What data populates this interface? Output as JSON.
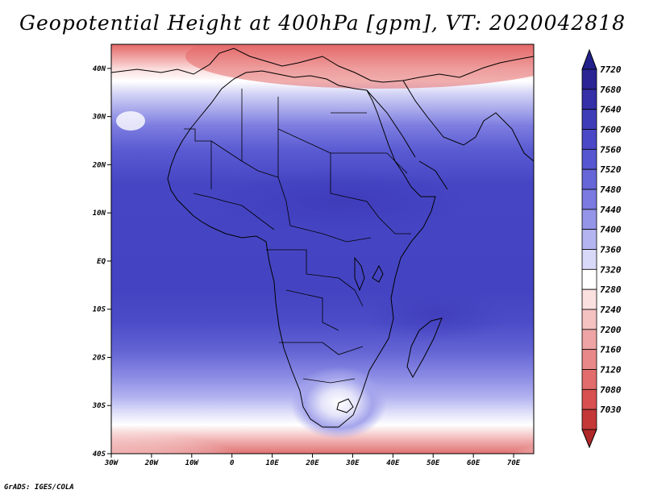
{
  "title": "Geopotential Height at 400hPa [gpm], VT: 2020042818",
  "footer": "GrADS: IGES/COLA",
  "map": {
    "lon_range": [
      -30,
      75
    ],
    "lat_range": [
      -40,
      45
    ],
    "lat_ticks": [
      {
        "value": 40,
        "label": "40N"
      },
      {
        "value": 30,
        "label": "30N"
      },
      {
        "value": 20,
        "label": "20N"
      },
      {
        "value": 10,
        "label": "10N"
      },
      {
        "value": 0,
        "label": "EQ"
      },
      {
        "value": -10,
        "label": "10S"
      },
      {
        "value": -20,
        "label": "20S"
      },
      {
        "value": -30,
        "label": "30S"
      },
      {
        "value": -40,
        "label": "40S"
      }
    ],
    "lon_ticks": [
      {
        "value": -30,
        "label": "30W"
      },
      {
        "value": -20,
        "label": "20W"
      },
      {
        "value": -10,
        "label": "10W"
      },
      {
        "value": 0,
        "label": "0"
      },
      {
        "value": 10,
        "label": "10E"
      },
      {
        "value": 20,
        "label": "20E"
      },
      {
        "value": 30,
        "label": "30E"
      },
      {
        "value": 40,
        "label": "40E"
      },
      {
        "value": 50,
        "label": "50E"
      },
      {
        "value": 60,
        "label": "60E"
      },
      {
        "value": 70,
        "label": "70E"
      }
    ]
  },
  "colorbar": {
    "levels": [
      {
        "label": "7720",
        "color": "#2a2494"
      },
      {
        "label": "7680",
        "color": "#3530a8"
      },
      {
        "label": "7640",
        "color": "#3f3cb8"
      },
      {
        "label": "7600",
        "color": "#4a48c6"
      },
      {
        "label": "7560",
        "color": "#5656d0"
      },
      {
        "label": "7520",
        "color": "#6666d8"
      },
      {
        "label": "7480",
        "color": "#7a7ae0"
      },
      {
        "label": "7440",
        "color": "#9494e8"
      },
      {
        "label": "7400",
        "color": "#b4b4f0"
      },
      {
        "label": "7360",
        "color": "#d8d8f8"
      },
      {
        "label": "7320",
        "color": "#ffffff"
      },
      {
        "label": "7280",
        "color": "#fbe0e0"
      },
      {
        "label": "7240",
        "color": "#f5c2c2"
      },
      {
        "label": "7200",
        "color": "#eea4a4"
      },
      {
        "label": "7160",
        "color": "#e88888"
      },
      {
        "label": "7120",
        "color": "#e26c6c"
      },
      {
        "label": "7080",
        "color": "#d85050"
      },
      {
        "label": "7030",
        "color": "#c43838"
      }
    ],
    "top_color": "#22208a",
    "bottom_color": "#b02828"
  }
}
